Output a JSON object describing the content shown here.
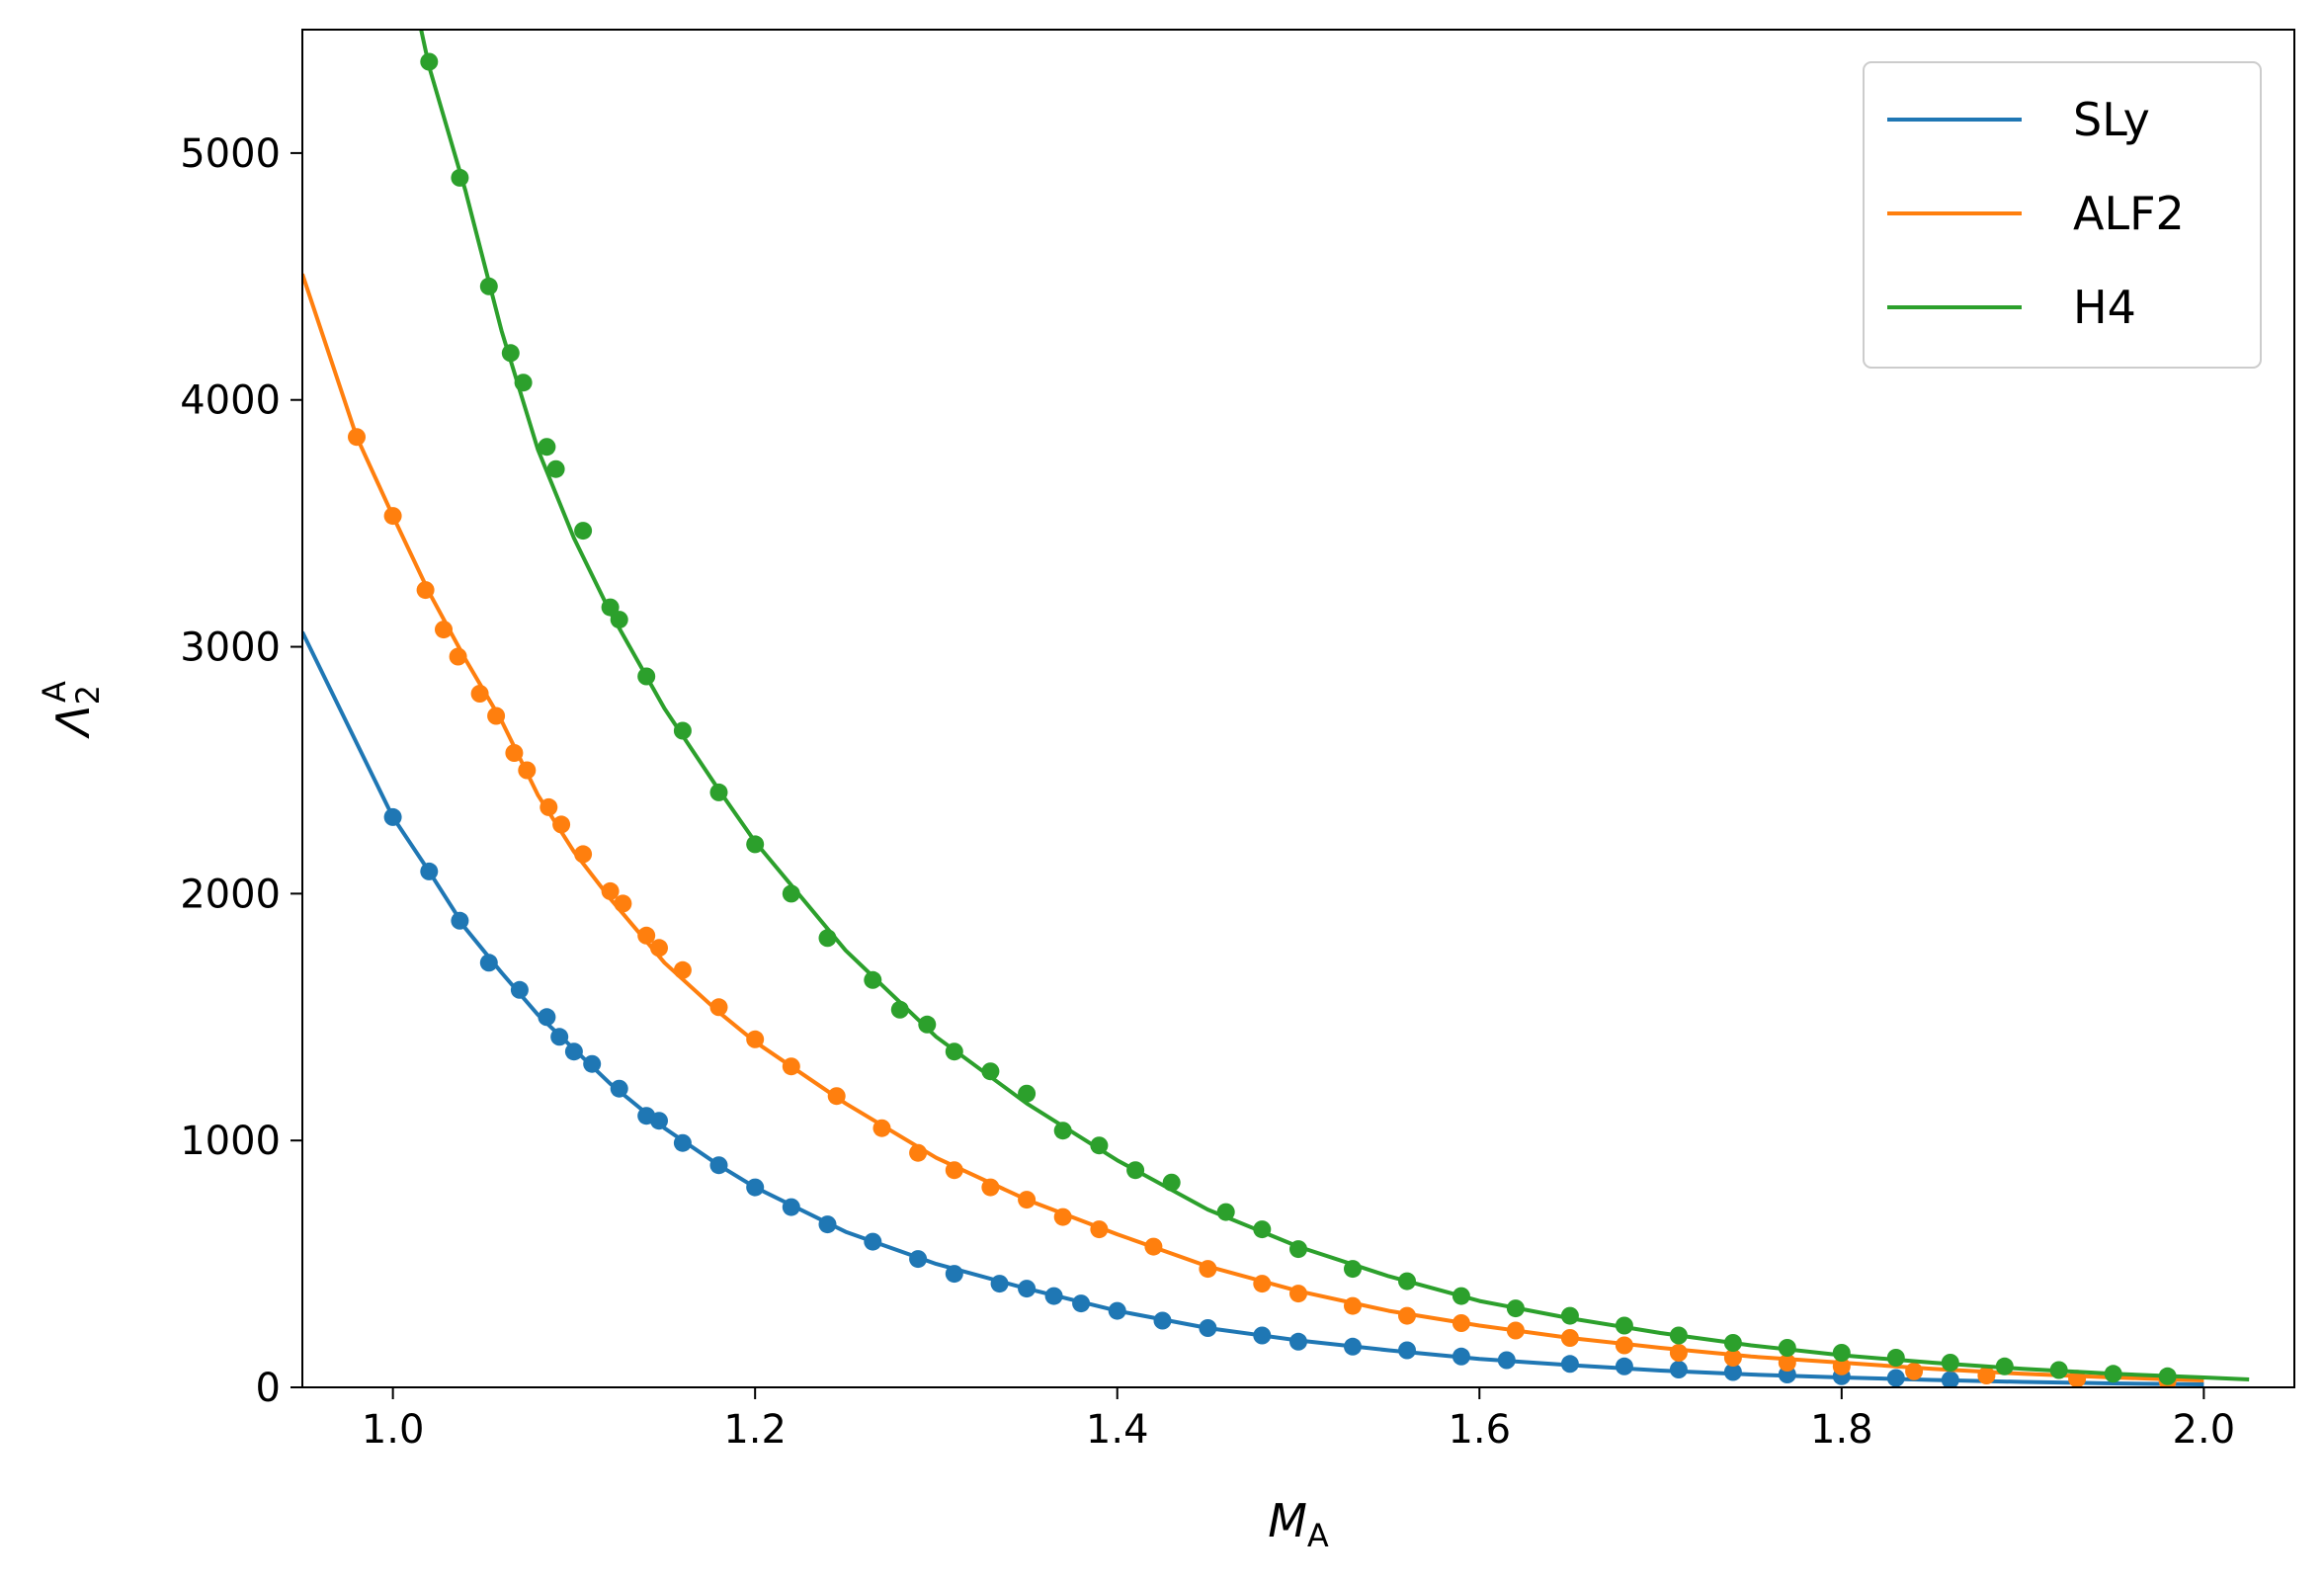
{
  "chart_data": {
    "type": "line",
    "xlabel_main": "M",
    "xlabel_sub": "A",
    "ylabel_main": "Λ",
    "ylabel_sub": "2",
    "ylabel_sup": "A",
    "xlim": [
      0.95,
      2.05
    ],
    "ylim": [
      0,
      5500
    ],
    "xticks": [
      1.0,
      1.2,
      1.4,
      1.6,
      1.8,
      2.0
    ],
    "xtick_labels": [
      "1.0",
      "1.2",
      "1.4",
      "1.6",
      "1.8",
      "2.0"
    ],
    "yticks": [
      0,
      1000,
      2000,
      3000,
      4000,
      5000
    ],
    "ytick_labels": [
      "0",
      "1000",
      "2000",
      "3000",
      "4000",
      "5000"
    ],
    "grid": false,
    "legend_position": "top-right",
    "series": [
      {
        "name": "SLy",
        "color": "#1f77b4",
        "curve_x": [
          0.95,
          1.0,
          1.02,
          1.04,
          1.06,
          1.08,
          1.1,
          1.12,
          1.15,
          1.18,
          1.2,
          1.25,
          1.3,
          1.35,
          1.4,
          1.45,
          1.5,
          1.55,
          1.6,
          1.65,
          1.7,
          1.75,
          1.8,
          1.85,
          1.9,
          1.95,
          2.0
        ],
        "curve_y": [
          3060,
          2310,
          2090,
          1860,
          1680,
          1510,
          1370,
          1230,
          1050,
          900,
          810,
          630,
          500,
          400,
          310,
          240,
          190,
          150,
          115,
          90,
          68,
          52,
          40,
          30,
          22,
          16,
          12
        ],
        "points_x": [
          1.0,
          1.02,
          1.037,
          1.053,
          1.07,
          1.085,
          1.092,
          1.1,
          1.11,
          1.125,
          1.14,
          1.147,
          1.16,
          1.18,
          1.2,
          1.22,
          1.24,
          1.265,
          1.29,
          1.31,
          1.335,
          1.35,
          1.365,
          1.38,
          1.4,
          1.425,
          1.45,
          1.48,
          1.5,
          1.53,
          1.56,
          1.59,
          1.615,
          1.65,
          1.68,
          1.71,
          1.74,
          1.77,
          1.8,
          1.83,
          1.86
        ],
        "points_y": [
          2310,
          2090,
          1890,
          1720,
          1610,
          1500,
          1420,
          1360,
          1310,
          1210,
          1100,
          1080,
          990,
          900,
          810,
          730,
          660,
          590,
          520,
          460,
          420,
          400,
          370,
          340,
          310,
          270,
          240,
          210,
          185,
          165,
          150,
          125,
          110,
          95,
          85,
          72,
          62,
          52,
          45,
          38,
          30
        ]
      },
      {
        "name": "ALF2",
        "color": "#ff7f0e",
        "curve_x": [
          0.95,
          0.98,
          1.0,
          1.02,
          1.04,
          1.06,
          1.08,
          1.1,
          1.12,
          1.15,
          1.18,
          1.2,
          1.25,
          1.3,
          1.35,
          1.4,
          1.45,
          1.5,
          1.55,
          1.6,
          1.65,
          1.7,
          1.75,
          1.8,
          1.85,
          1.9,
          1.95,
          2.0
        ],
        "curve_y": [
          4510,
          3850,
          3530,
          3220,
          2950,
          2700,
          2400,
          2170,
          1980,
          1720,
          1520,
          1400,
          1150,
          930,
          760,
          620,
          490,
          390,
          310,
          250,
          200,
          160,
          125,
          100,
          75,
          55,
          40,
          28
        ],
        "points_x": [
          0.98,
          1.0,
          1.018,
          1.028,
          1.036,
          1.048,
          1.057,
          1.067,
          1.074,
          1.086,
          1.093,
          1.105,
          1.12,
          1.127,
          1.14,
          1.147,
          1.16,
          1.18,
          1.2,
          1.22,
          1.245,
          1.27,
          1.29,
          1.31,
          1.33,
          1.35,
          1.37,
          1.39,
          1.42,
          1.45,
          1.48,
          1.5,
          1.53,
          1.56,
          1.59,
          1.62,
          1.65,
          1.68,
          1.71,
          1.74,
          1.77,
          1.8,
          1.84,
          1.88,
          1.93,
          1.98
        ],
        "points_y": [
          3850,
          3530,
          3230,
          3070,
          2960,
          2810,
          2720,
          2570,
          2500,
          2350,
          2280,
          2160,
          2010,
          1960,
          1830,
          1780,
          1690,
          1540,
          1410,
          1300,
          1180,
          1050,
          950,
          880,
          810,
          760,
          690,
          640,
          570,
          480,
          420,
          380,
          330,
          290,
          260,
          230,
          200,
          170,
          140,
          120,
          100,
          85,
          65,
          48,
          35,
          25
        ]
      },
      {
        "name": "H4",
        "color": "#2ca02c",
        "curve_x": [
          1.015,
          1.02,
          1.04,
          1.06,
          1.08,
          1.1,
          1.12,
          1.15,
          1.18,
          1.2,
          1.25,
          1.3,
          1.35,
          1.4,
          1.45,
          1.5,
          1.55,
          1.6,
          1.65,
          1.7,
          1.75,
          1.8,
          1.85,
          1.9,
          1.95,
          2.0,
          2.025
        ],
        "curve_y": [
          5520,
          5350,
          4850,
          4280,
          3800,
          3440,
          3140,
          2750,
          2420,
          2210,
          1770,
          1420,
          1150,
          920,
          720,
          570,
          450,
          350,
          280,
          220,
          170,
          130,
          100,
          75,
          55,
          40,
          32
        ],
        "points_x": [
          1.02,
          1.037,
          1.053,
          1.065,
          1.072,
          1.085,
          1.09,
          1.105,
          1.12,
          1.125,
          1.14,
          1.16,
          1.18,
          1.2,
          1.22,
          1.24,
          1.265,
          1.28,
          1.295,
          1.31,
          1.33,
          1.35,
          1.37,
          1.39,
          1.41,
          1.43,
          1.46,
          1.48,
          1.5,
          1.53,
          1.56,
          1.59,
          1.62,
          1.65,
          1.68,
          1.71,
          1.74,
          1.77,
          1.8,
          1.83,
          1.86,
          1.89,
          1.92,
          1.95,
          1.98
        ],
        "points_y": [
          5370,
          4900,
          4460,
          4190,
          4070,
          3810,
          3720,
          3470,
          3160,
          3110,
          2880,
          2660,
          2410,
          2200,
          2000,
          1820,
          1650,
          1530,
          1470,
          1360,
          1280,
          1190,
          1040,
          980,
          880,
          830,
          710,
          640,
          560,
          480,
          430,
          370,
          320,
          290,
          250,
          210,
          180,
          160,
          140,
          120,
          100,
          85,
          70,
          55,
          45
        ]
      }
    ]
  }
}
